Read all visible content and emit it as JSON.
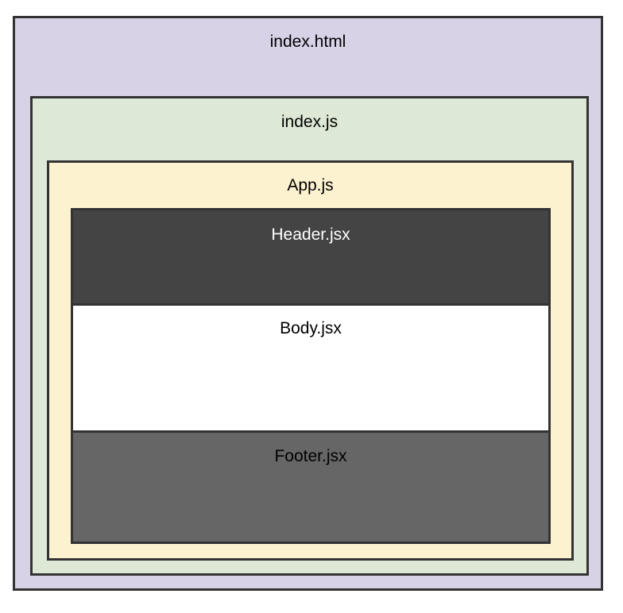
{
  "diagram": {
    "index_html": {
      "label": "index.html"
    },
    "index_js": {
      "label": "index.js"
    },
    "app_js": {
      "label": "App.js"
    },
    "header_jsx": {
      "label": "Header.jsx"
    },
    "body_jsx": {
      "label": "Body.jsx"
    },
    "footer_jsx": {
      "label": "Footer.jsx"
    }
  },
  "colors": {
    "index_html_fill": "#d8d2e7",
    "index_js_fill": "#dde9d6",
    "app_js_fill": "#fdf2d0",
    "header_fill": "#444444",
    "body_fill": "#ffffff",
    "footer_fill": "#666666",
    "border": "#333333"
  }
}
